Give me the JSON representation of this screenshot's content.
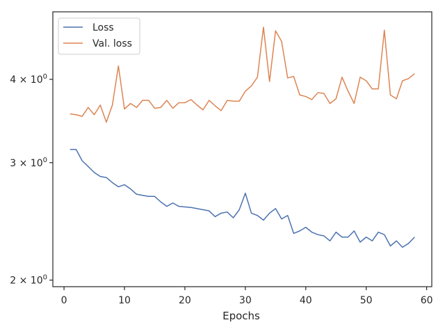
{
  "chart_data": {
    "type": "line",
    "xlabel": "Epochs",
    "ylabel": "",
    "yscale": "log",
    "xlim": [
      -1.85,
      60.85
    ],
    "ylim": [
      1.955,
      5.05
    ],
    "x_ticks": [
      0,
      10,
      20,
      30,
      40,
      50,
      60
    ],
    "x_tick_labels": [
      "0",
      "10",
      "20",
      "30",
      "40",
      "50",
      "60"
    ],
    "y_ticks": [
      2,
      3,
      4
    ],
    "y_tick_labels": [
      {
        "base": "2",
        "times": "×",
        "ten": "10",
        "exp": "0"
      },
      {
        "base": "3",
        "times": "×",
        "ten": "10",
        "exp": "0"
      },
      {
        "base": "4",
        "times": "×",
        "ten": "10",
        "exp": "0"
      }
    ],
    "grid": false,
    "legend_position": "top-left",
    "x": [
      1,
      2,
      3,
      4,
      5,
      6,
      7,
      8,
      9,
      10,
      11,
      12,
      13,
      14,
      15,
      16,
      17,
      18,
      19,
      20,
      21,
      22,
      23,
      24,
      25,
      26,
      27,
      28,
      29,
      30,
      31,
      32,
      33,
      34,
      35,
      36,
      37,
      38,
      39,
      40,
      41,
      42,
      43,
      44,
      45,
      46,
      47,
      48,
      49,
      50,
      51,
      52,
      53,
      54,
      55,
      56,
      57,
      58
    ],
    "series": [
      {
        "name": "Loss",
        "color": "#4c72b0",
        "values": [
          3.14,
          3.14,
          3.02,
          2.96,
          2.9,
          2.86,
          2.85,
          2.8,
          2.76,
          2.78,
          2.74,
          2.69,
          2.68,
          2.67,
          2.67,
          2.62,
          2.58,
          2.61,
          2.58,
          2.575,
          2.57,
          2.56,
          2.55,
          2.54,
          2.49,
          2.52,
          2.53,
          2.48,
          2.55,
          2.7,
          2.52,
          2.5,
          2.46,
          2.52,
          2.56,
          2.47,
          2.5,
          2.35,
          2.37,
          2.4,
          2.36,
          2.34,
          2.33,
          2.29,
          2.36,
          2.32,
          2.32,
          2.37,
          2.28,
          2.32,
          2.29,
          2.36,
          2.34,
          2.25,
          2.29,
          2.24,
          2.27,
          2.32
        ]
      },
      {
        "name": "Val. loss",
        "color": "#dd8452",
        "values": [
          3.55,
          3.54,
          3.52,
          3.63,
          3.54,
          3.66,
          3.45,
          3.66,
          4.19,
          3.61,
          3.68,
          3.63,
          3.72,
          3.72,
          3.62,
          3.63,
          3.72,
          3.62,
          3.69,
          3.69,
          3.73,
          3.66,
          3.6,
          3.72,
          3.65,
          3.59,
          3.72,
          3.71,
          3.71,
          3.84,
          3.91,
          4.03,
          4.79,
          3.97,
          4.73,
          4.56,
          4.02,
          4.04,
          3.79,
          3.77,
          3.73,
          3.82,
          3.81,
          3.68,
          3.74,
          4.03,
          3.84,
          3.68,
          4.03,
          3.98,
          3.87,
          3.87,
          4.74,
          3.79,
          3.74,
          3.98,
          4.01,
          4.08
        ]
      }
    ]
  }
}
